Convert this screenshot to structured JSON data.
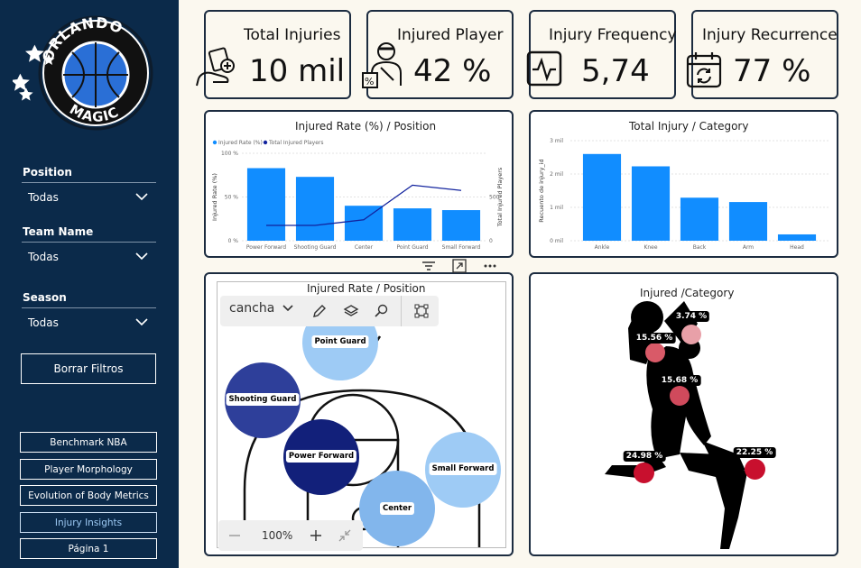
{
  "sidebar": {
    "logo_text_top": "ORLANDO",
    "logo_text_bottom": "MAGIC",
    "filters": [
      {
        "label": "Position",
        "value": "Todas"
      },
      {
        "label": "Team Name",
        "value": "Todas"
      },
      {
        "label": "Season",
        "value": "Todas"
      }
    ],
    "clear_button": "Borrar Filtros",
    "nav": [
      {
        "label": "Benchmark NBA",
        "active": false
      },
      {
        "label": "Player Morphology",
        "active": false
      },
      {
        "label": "Evolution of Body Metrics",
        "active": false
      },
      {
        "label": "Injury Insights",
        "active": true
      },
      {
        "label": "Página 1",
        "active": false
      }
    ]
  },
  "kpis": [
    {
      "title": "Total Injuries",
      "value": "10 mil",
      "icon": "injured-hand-icon"
    },
    {
      "title": "Injured Player",
      "value": "42 %",
      "icon": "injured-player-icon"
    },
    {
      "title": "Injury Frequency",
      "value": "5,74",
      "icon": "pulse-icon"
    },
    {
      "title": "Injury Recurrence",
      "value": "77 %",
      "icon": "calendar-recur-icon"
    }
  ],
  "colors": {
    "sidebar_bg": "#0b2a4a",
    "bar_blue": "#118dff",
    "line_navy": "#12239e",
    "marker_red": "#c8102e",
    "marker_light": "#e8a0a8"
  },
  "chart_data": [
    {
      "type": "bar",
      "title": "Injured Rate (%) / Position",
      "legend": [
        "Injured Rate (%)",
        "Total Injured Players"
      ],
      "legend_position": "top-left",
      "categories": [
        "Power Forward",
        "Shooting Guard",
        "Center",
        "Point Guard",
        "Small Forward"
      ],
      "series": [
        {
          "name": "Injured Rate (%)",
          "type": "bar",
          "values": [
            83,
            73,
            40,
            37,
            35
          ]
        },
        {
          "name": "Total Injured Players",
          "type": "line",
          "values": [
            175,
            175,
            240,
            635,
            575
          ]
        }
      ],
      "ylabel": "Injured Rate (%)",
      "ylabel_right": "Total Injured Players",
      "y_ticks": [
        "0 %",
        "50 %",
        "100 %"
      ],
      "y_right_ticks": [
        "0",
        "500"
      ],
      "ylim": [
        0,
        100
      ],
      "y_right_lim": [
        0,
        1000
      ],
      "grid": true
    },
    {
      "type": "bar",
      "title": "Total Injury / Category",
      "categories": [
        "Ankle",
        "Knee",
        "Back",
        "Arm",
        "Head"
      ],
      "values": [
        2600,
        2230,
        1290,
        1160,
        190
      ],
      "ylabel": "Recuento de injury_id",
      "y_ticks": [
        "0 mil",
        "1 mil",
        "2 mil",
        "3 mil"
      ],
      "ylim": [
        0,
        3000
      ],
      "grid": true
    }
  ],
  "court_map": {
    "title": "Injured Rate / Position",
    "select_value": "cancha",
    "zoom": "100%",
    "bubbles": [
      {
        "label": "Point Guard",
        "color": "#9ecbf5"
      },
      {
        "label": "Shooting Guard",
        "color": "#2e3f9a"
      },
      {
        "label": "Power Forward",
        "color": "#12207a"
      },
      {
        "label": "Small Forward",
        "color": "#9ecbf5"
      },
      {
        "label": "Center",
        "color": "#82b6ec"
      }
    ]
  },
  "category_map": {
    "title": "Injured /Category",
    "markers": [
      {
        "label": "3.74 %",
        "color": "#e8a0a8"
      },
      {
        "label": "15.56 %",
        "color": "#d95a68"
      },
      {
        "label": "15.68 %",
        "color": "#d04a5c"
      },
      {
        "label": "24.98 %",
        "color": "#c8102e"
      },
      {
        "label": "22.25 %",
        "color": "#c8102e"
      }
    ]
  }
}
